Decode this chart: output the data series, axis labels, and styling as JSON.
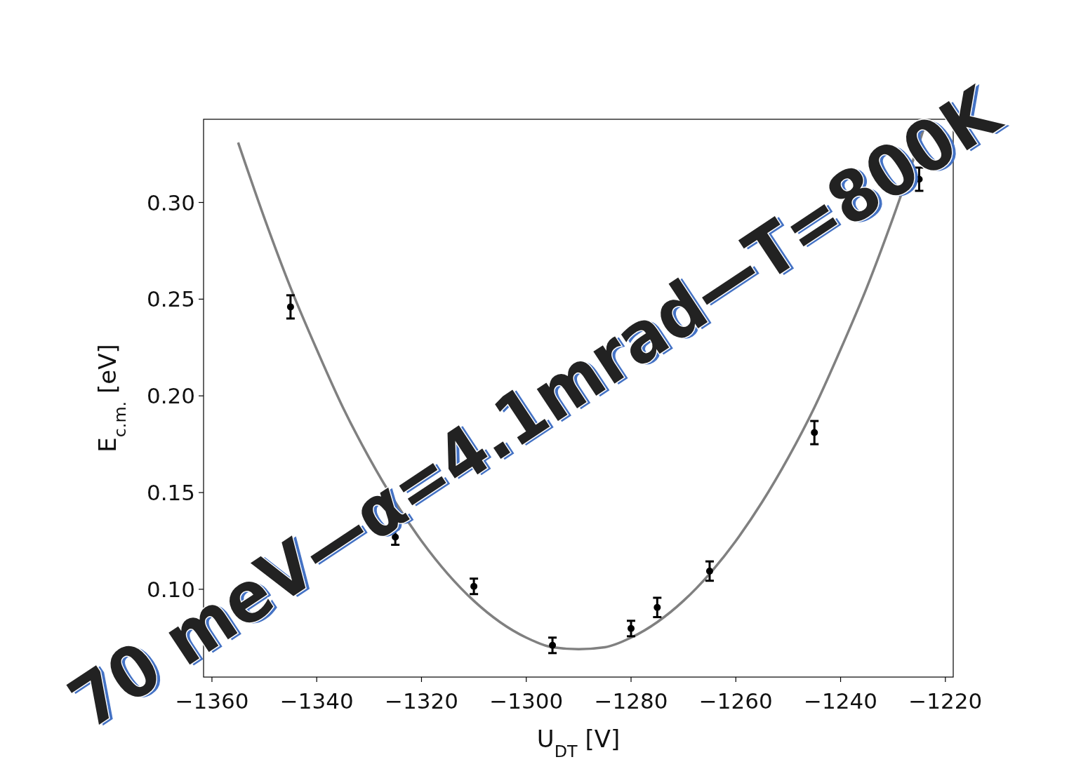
{
  "chart_data": {
    "type": "scatter",
    "xlabel": "U$_{DT}$ [V]",
    "ylabel": "E$_{c.m.}$ [eV]",
    "xlim": [
      -1361.6,
      -1218.5
    ],
    "ylim": [
      0.0546,
      0.343
    ],
    "xticks": [
      {
        "value": -1360,
        "label": "−1360"
      },
      {
        "value": -1340,
        "label": "−1340"
      },
      {
        "value": -1320,
        "label": "−1320"
      },
      {
        "value": -1300,
        "label": "−1300"
      },
      {
        "value": -1280,
        "label": "−1280"
      },
      {
        "value": -1260,
        "label": "−1260"
      },
      {
        "value": -1240,
        "label": "−1240"
      },
      {
        "value": -1220,
        "label": "−1220"
      }
    ],
    "yticks": [
      {
        "value": 0.1,
        "label": "0.10"
      },
      {
        "value": 0.15,
        "label": "0.15"
      },
      {
        "value": 0.2,
        "label": "0.20"
      },
      {
        "value": 0.25,
        "label": "0.25"
      },
      {
        "value": 0.3,
        "label": "0.30"
      }
    ],
    "grid": false,
    "marker": "circle",
    "series": [
      {
        "type": "line",
        "color": "#808080",
        "line_style": "solid",
        "marker": "none",
        "x": [
          -1355,
          -1350,
          -1345,
          -1340,
          -1335,
          -1330,
          -1325,
          -1320,
          -1315,
          -1310,
          -1305,
          -1300,
          -1295,
          -1290,
          -1285,
          -1280,
          -1275,
          -1270,
          -1265,
          -1260,
          -1255,
          -1250,
          -1245,
          -1240,
          -1235,
          -1230,
          -1225,
          -1224
        ],
        "values": [
          0.331,
          0.292,
          0.256,
          0.224,
          0.194,
          0.168,
          0.145,
          0.125,
          0.108,
          0.094,
          0.083,
          0.075,
          0.07,
          0.069,
          0.07,
          0.075,
          0.083,
          0.094,
          0.108,
          0.125,
          0.145,
          0.168,
          0.194,
          0.224,
          0.256,
          0.292,
          0.331,
          0.339
        ]
      },
      {
        "color": "#000000",
        "x": [
          -1345,
          -1325,
          -1310,
          -1295,
          -1280,
          -1275,
          -1265,
          -1245,
          -1225
        ],
        "values": [
          0.246,
          0.127,
          0.1015,
          0.071,
          0.0797,
          0.0906,
          0.1094,
          0.181,
          0.312
        ],
        "errors": [
          0.006,
          0.004,
          0.004,
          0.004,
          0.004,
          0.005,
          0.005,
          0.006,
          0.006
        ]
      }
    ],
    "annotations": [
      "70 meV—α=4.1mrad—T=800K"
    ]
  }
}
